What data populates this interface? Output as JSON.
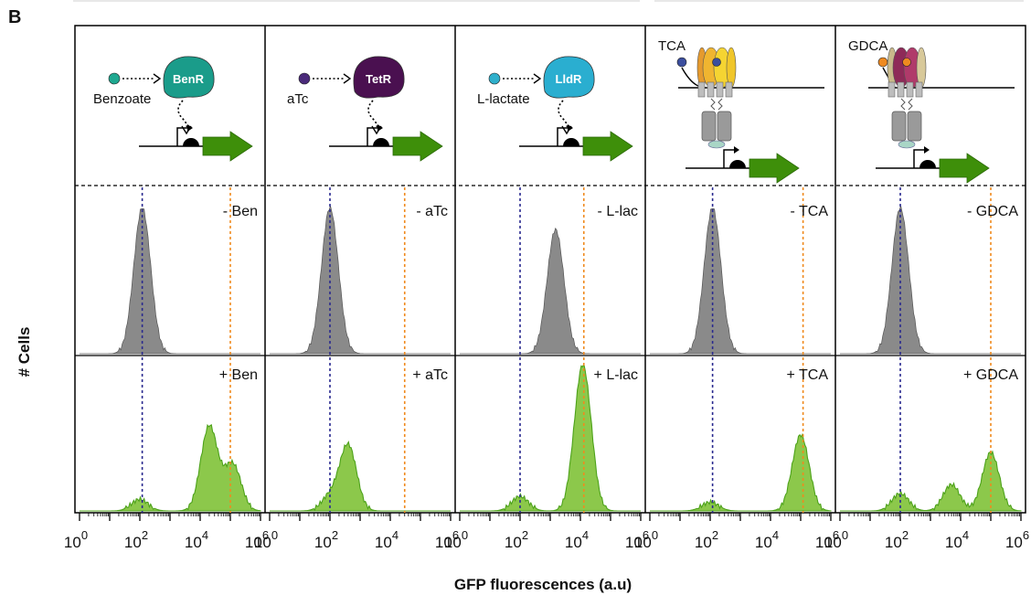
{
  "panel_letter": "B",
  "chart_data": {
    "type": "area",
    "xlabel": "GFP fluorescences (a.u)",
    "ylabel": "# Cells",
    "x_scale": "log10",
    "xlim": [
      1,
      1000000
    ],
    "x_tick_labels": [
      "10^0",
      "10^2",
      "10^4",
      "10^6"
    ],
    "colors": {
      "uninduced": "#8a8a8a",
      "induced": "#8cc84b",
      "induced_edge": "#4da21a",
      "neg_line": "#2a2a8f",
      "pos_line": "#f08a1e",
      "output_arrow": "#3e8f0a"
    },
    "panels": [
      {
        "schematic": {
          "inducer_name": "Benzoate",
          "inducer_color": "#1fa890",
          "sensor": "BenR",
          "sensor_color": "#1a9c8a",
          "type": "transcription_factor"
        },
        "neg_line_x": 120,
        "pos_line_x": 100000,
        "uninduced": {
          "label": "- Ben",
          "peaks": [
            {
              "x": 120,
              "height": 1.0
            }
          ]
        },
        "induced": {
          "label": "+ Ben",
          "peaks": [
            {
              "x": 100,
              "height": 0.08
            },
            {
              "x": 20000,
              "height": 0.58
            },
            {
              "x": 120000,
              "height": 0.32
            }
          ]
        }
      },
      {
        "schematic": {
          "inducer_name": "aTc",
          "inducer_color": "#4a2a7a",
          "sensor": "TetR",
          "sensor_color": "#4a1050",
          "type": "transcription_factor"
        },
        "neg_line_x": 100,
        "pos_line_x": 30000,
        "uninduced": {
          "label": "- aTc",
          "peaks": [
            {
              "x": 100,
              "height": 1.0
            }
          ]
        },
        "induced": {
          "label": "+ aTc",
          "peaks": [
            {
              "x": 100,
              "height": 0.1
            },
            {
              "x": 400,
              "height": 0.45
            }
          ]
        }
      },
      {
        "schematic": {
          "inducer_name": "L-lactate",
          "inducer_color": "#2fb0cc",
          "sensor": "LldR",
          "sensor_color": "#2aaed0",
          "type": "transcription_factor"
        },
        "neg_line_x": 100,
        "pos_line_x": 13000,
        "uninduced": {
          "label": "- L-lac",
          "peaks": [
            {
              "x": 1500,
              "height": 0.85
            }
          ]
        },
        "induced": {
          "label": "+ L-lac",
          "peaks": [
            {
              "x": 100,
              "height": 0.1
            },
            {
              "x": 12000,
              "height": 1.0
            }
          ]
        }
      },
      {
        "schematic": {
          "inducer_name": "TCA",
          "inducer_color": "#3b4e9e",
          "sensor": "",
          "sensor_color": "#f2c230",
          "type": "membrane_receptor"
        },
        "neg_line_x": 120,
        "pos_line_x": 120000,
        "uninduced": {
          "label": "- TCA",
          "peaks": [
            {
              "x": 120,
              "height": 1.0
            }
          ]
        },
        "induced": {
          "label": "+ TCA",
          "peaks": [
            {
              "x": 100,
              "height": 0.06
            },
            {
              "x": 100000,
              "height": 0.52
            }
          ]
        }
      },
      {
        "schematic": {
          "inducer_name": "GDCA",
          "inducer_color": "#ef8a20",
          "sensor": "",
          "sensor_color": "#8e2a58",
          "type": "membrane_receptor"
        },
        "neg_line_x": 100,
        "pos_line_x": 100000,
        "uninduced": {
          "label": "- GDCA",
          "peaks": [
            {
              "x": 100,
              "height": 1.0
            }
          ]
        },
        "induced": {
          "label": "+ GDCA",
          "peaks": [
            {
              "x": 100,
              "height": 0.12
            },
            {
              "x": 5000,
              "height": 0.18
            },
            {
              "x": 100000,
              "height": 0.4
            }
          ]
        }
      }
    ]
  }
}
